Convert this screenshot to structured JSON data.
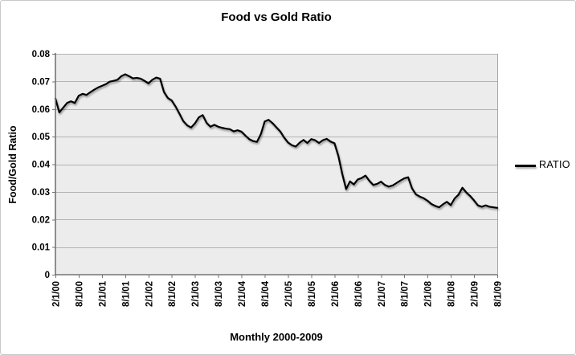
{
  "chart_data": {
    "type": "line",
    "title": "Food vs Gold Ratio",
    "xlabel": "Monthly 2000-2009",
    "ylabel": "Food/Gold Ratio",
    "grid": "horizontal",
    "ylim": [
      0,
      0.08
    ],
    "y_tick_step": 0.01,
    "y_tick_labels": [
      "0",
      "0.01",
      "0.02",
      "0.03",
      "0.04",
      "0.05",
      "0.06",
      "0.07",
      "0.08"
    ],
    "x_tick_labels": [
      "2/1/00",
      "8/1/00",
      "2/1/01",
      "8/1/01",
      "2/1/02",
      "8/1/02",
      "2/1/03",
      "8/1/03",
      "2/1/04",
      "8/1/04",
      "2/1/05",
      "8/1/05",
      "2/1/06",
      "8/1/06",
      "2/1/07",
      "8/1/07",
      "2/1/08",
      "8/1/08",
      "2/1/09",
      "8/1/09"
    ],
    "x_frequency": "monthly",
    "x_range_start": "2/1/00",
    "x_range_end": "8/1/09",
    "legend": {
      "position": "right",
      "entries": [
        {
          "label": "RATIO",
          "color": "#000000"
        }
      ]
    },
    "series": [
      {
        "name": "RATIO",
        "color": "#000000",
        "values": [
          0.0638,
          0.0588,
          0.0605,
          0.0622,
          0.0628,
          0.0622,
          0.0648,
          0.0655,
          0.0651,
          0.0661,
          0.067,
          0.0678,
          0.0684,
          0.069,
          0.0699,
          0.0702,
          0.0706,
          0.0719,
          0.0726,
          0.0719,
          0.0711,
          0.0713,
          0.071,
          0.0702,
          0.0693,
          0.0706,
          0.0714,
          0.071,
          0.0662,
          0.064,
          0.0631,
          0.0609,
          0.0583,
          0.0556,
          0.0541,
          0.0533,
          0.0548,
          0.057,
          0.0578,
          0.055,
          0.0536,
          0.0543,
          0.0536,
          0.0532,
          0.0529,
          0.0527,
          0.0519,
          0.0523,
          0.0518,
          0.0504,
          0.0491,
          0.0484,
          0.0481,
          0.0509,
          0.0555,
          0.0561,
          0.0549,
          0.0534,
          0.0519,
          0.0497,
          0.0479,
          0.0469,
          0.0464,
          0.0478,
          0.0488,
          0.0477,
          0.0491,
          0.0487,
          0.0477,
          0.0487,
          0.0492,
          0.0482,
          0.0476,
          0.043,
          0.0365,
          0.031,
          0.0338,
          0.0327,
          0.0345,
          0.035,
          0.0359,
          0.034,
          0.0325,
          0.0329,
          0.0337,
          0.0325,
          0.0319,
          0.0323,
          0.0332,
          0.0341,
          0.0349,
          0.0353,
          0.0313,
          0.0291,
          0.0283,
          0.0277,
          0.0268,
          0.0256,
          0.0249,
          0.0244,
          0.0255,
          0.0264,
          0.0252,
          0.0276,
          0.029,
          0.0315,
          0.0298,
          0.0285,
          0.0269,
          0.0251,
          0.0246,
          0.0251,
          0.0246,
          0.0244,
          0.0242
        ]
      }
    ]
  },
  "style": {
    "plot_bg": "#ececec",
    "grid_color": "#b3b3b3",
    "axis_color": "#757575",
    "plot_right_border": "#a6a6a6",
    "frame_border": "#c9c9c9",
    "text_color": "#000000",
    "series_color": "#000000"
  }
}
